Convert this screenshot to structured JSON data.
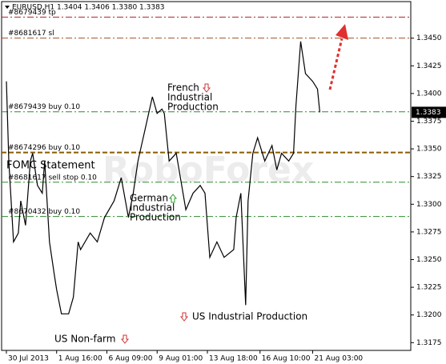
{
  "chart_data": {
    "type": "line",
    "title": "EURUSD,H1  1.3404 1.3406 1.3380 1.3383",
    "watermark": "RoboForex",
    "series": [
      {
        "name": "EURUSD",
        "color": "#000000",
        "x": [
          2,
          3,
          5,
          7,
          8,
          10,
          12,
          13,
          15,
          17,
          18,
          20,
          22,
          23,
          25,
          28,
          30,
          32,
          33,
          37,
          40,
          43,
          47,
          50,
          53,
          55,
          57,
          60,
          63,
          65,
          67,
          68,
          70,
          73,
          77,
          80,
          83,
          85,
          87,
          90,
          93,
          97,
          98,
          100,
          102,
          103,
          105,
          107,
          110,
          113,
          115,
          117,
          120,
          122,
          123,
          125,
          127,
          130,
          132,
          133
        ],
        "values": [
          1.3411,
          1.3339,
          1.3266,
          1.3274,
          1.3303,
          1.3281,
          1.3339,
          1.3346,
          1.3317,
          1.331,
          1.3339,
          1.3266,
          1.3237,
          1.3223,
          1.3201,
          1.3201,
          1.3216,
          1.3266,
          1.3259,
          1.3274,
          1.3266,
          1.3288,
          1.3303,
          1.3324,
          1.3288,
          1.331,
          1.3339,
          1.3368,
          1.3397,
          1.3382,
          1.3386,
          1.3382,
          1.3339,
          1.3346,
          1.3295,
          1.331,
          1.3317,
          1.331,
          1.3252,
          1.3266,
          1.3252,
          1.3259,
          1.3288,
          1.331,
          1.3209,
          1.3303,
          1.3346,
          1.336,
          1.3339,
          1.3353,
          1.3331,
          1.3346,
          1.3339,
          1.3346,
          1.3389,
          1.3447,
          1.3418,
          1.3411,
          1.3404,
          1.3383
        ]
      }
    ],
    "xlim": [
      0,
      171
    ],
    "xticks": [
      {
        "value": 2,
        "label": "30 Jul 2013"
      },
      {
        "value": 23,
        "label": "1 Aug 16:00"
      },
      {
        "value": 44,
        "label": "6 Aug 09:00"
      },
      {
        "value": 65,
        "label": "9 Aug 01:00"
      },
      {
        "value": 86,
        "label": "13 Aug 18:00"
      },
      {
        "value": 108,
        "label": "16 Aug 10:00"
      },
      {
        "value": 130,
        "label": "21 Aug 03:00"
      }
    ],
    "ylim": [
      1.3168,
      1.3483
    ],
    "yticks": [
      {
        "value": 1.345,
        "label": "1.3450"
      },
      {
        "value": 1.3425,
        "label": "1.3425"
      },
      {
        "value": 1.34,
        "label": "1.3400"
      },
      {
        "value": 1.3375,
        "label": "1.3375"
      },
      {
        "value": 1.335,
        "label": "1.3350"
      },
      {
        "value": 1.3325,
        "label": "1.3325"
      },
      {
        "value": 1.33,
        "label": "1.3300"
      },
      {
        "value": 1.3275,
        "label": "1.3275"
      },
      {
        "value": 1.325,
        "label": "1.3250"
      },
      {
        "value": 1.3225,
        "label": "1.3225"
      },
      {
        "value": 1.32,
        "label": "1.3200"
      },
      {
        "value": 1.3175,
        "label": "1.3175"
      }
    ],
    "current_price": {
      "value": 1.3383,
      "label": "1.3383"
    },
    "orders": [
      {
        "label": "#8679439 tp",
        "value": 1.3469,
        "color": "#b22222"
      },
      {
        "label": "#8681617 sl",
        "value": 1.345,
        "color": "#a0522d"
      },
      {
        "label": "#8679439 buy 0.10",
        "value": 1.33835,
        "color": "#2e8b2e"
      },
      {
        "label": "#8674296 buy 0.10",
        "value": 1.33467,
        "color": "#8b5a00"
      },
      {
        "label": "#8681617 sell stop 0.10",
        "value": 1.33199,
        "color": "#2e8b2e"
      },
      {
        "label": "#8670432 buy 0.10",
        "value": 1.32889,
        "color": "#2e8b2e"
      }
    ],
    "annotations": [
      [
        "French",
        "Industrial",
        "Production"
      ],
      [
        "German",
        "Industrial",
        "Production"
      ],
      [
        "FOMC Statement"
      ],
      [
        "US Non-farm"
      ],
      [
        "US Industrial Production"
      ]
    ]
  }
}
